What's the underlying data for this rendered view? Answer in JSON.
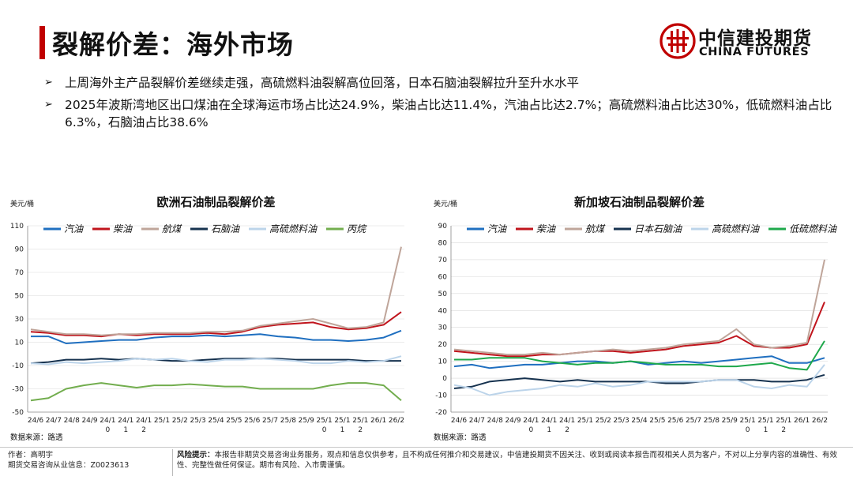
{
  "header": {
    "title": "裂解价差：海外市场",
    "logo_cn": "中信建投期货",
    "logo_en": "CHINA FUTURES"
  },
  "bullets": [
    "上周海外主产品裂解价差继续走强，高硫燃料油裂解高位回落，日本石脑油裂解拉升至升水水平",
    "2025年波斯湾地区出口煤油在全球海运市场占比达24.9%，柴油占比达11.4%，汽油占比达2.7%；高硫燃料油占比达30%，低硫燃料油占比6.3%，石脑油占比38.6%"
  ],
  "footer": {
    "author": "作者：高明宇",
    "license": "期货交易咨询从业信息：Z0023613",
    "risk_label": "风险提示：",
    "risk_text": "本报告非期货交易咨询业务服务，观点和信息仅供参考，且不构成任何推介和交易建议，中信建投期货不因关注、收到或阅读本报告而视相关人员为客户，不对以上分享内容的准确性、有效性、完整性做任何保证。期市有风险、入市需谨慎。"
  },
  "colors": {
    "accent": "#c00000",
    "gasoline": "#1f6fc0",
    "diesel": "#c0141c",
    "jet": "#bfa59a",
    "naphtha": "#16324f",
    "hsfo": "#bcd4ea",
    "propane": "#72ad4e",
    "lsfo": "#1ea84b"
  },
  "chart_data": [
    {
      "type": "line",
      "title": "欧洲石油制品裂解价差",
      "ylabel": "美元/桶",
      "source": "数据来源：路透",
      "ylim": [
        -50,
        110
      ],
      "yticks": [
        -50,
        -30,
        -10,
        10,
        30,
        50,
        70,
        90,
        110
      ],
      "xticks": [
        [
          "24/6"
        ],
        [
          "24/7"
        ],
        [
          "24/8"
        ],
        [
          "24/9"
        ],
        [
          "24/1",
          "0"
        ],
        [
          "24/1",
          "1"
        ],
        [
          "24/1",
          "2"
        ],
        [
          "25/1"
        ],
        [
          "25/2"
        ],
        [
          "25/3"
        ],
        [
          "25/4"
        ],
        [
          "25/5"
        ],
        [
          "25/6"
        ],
        [
          "25/7"
        ],
        [
          "25/8"
        ],
        [
          "25/9"
        ],
        [
          "25/1",
          "0"
        ],
        [
          "25/1",
          "1"
        ],
        [
          "25/1",
          "2"
        ],
        [
          "26/1"
        ],
        [
          "26/2"
        ]
      ],
      "legend_position": "top",
      "series": [
        {
          "name": "汽油",
          "color": "#1f6fc0",
          "values": [
            15,
            15,
            9,
            10,
            11,
            12,
            12,
            14,
            15,
            15,
            16,
            15,
            16,
            17,
            15,
            14,
            12,
            12,
            11,
            12,
            14,
            20
          ]
        },
        {
          "name": "柴油",
          "color": "#c0141c",
          "values": [
            19,
            18,
            16,
            16,
            15,
            17,
            16,
            17,
            17,
            17,
            18,
            17,
            19,
            23,
            25,
            26,
            27,
            23,
            21,
            22,
            25,
            36
          ]
        },
        {
          "name": "航煤",
          "color": "#bfa59a",
          "values": [
            21,
            19,
            17,
            17,
            16,
            17,
            17,
            18,
            18,
            18,
            19,
            19,
            20,
            24,
            26,
            28,
            30,
            26,
            22,
            23,
            27,
            92
          ]
        },
        {
          "name": "石脑油",
          "color": "#16324f",
          "values": [
            -8,
            -7,
            -5,
            -5,
            -4,
            -5,
            -4,
            -5,
            -6,
            -6,
            -5,
            -4,
            -4,
            -4,
            -4,
            -5,
            -5,
            -5,
            -5,
            -6,
            -6,
            -6
          ]
        },
        {
          "name": "高硫燃料油",
          "color": "#bcd4ea",
          "values": [
            -8,
            -9,
            -7,
            -8,
            -7,
            -6,
            -4,
            -5,
            -4,
            -6,
            -7,
            -5,
            -5,
            -4,
            -5,
            -6,
            -8,
            -8,
            -6,
            -7,
            -6,
            -2
          ]
        },
        {
          "name": "丙烷",
          "color": "#72ad4e",
          "values": [
            -40,
            -38,
            -30,
            -27,
            -25,
            -27,
            -29,
            -27,
            -27,
            -26,
            -27,
            -28,
            -28,
            -30,
            -30,
            -30,
            -30,
            -27,
            -25,
            -25,
            -27,
            -40
          ]
        }
      ]
    },
    {
      "type": "line",
      "title": "新加坡石油制品裂解价差",
      "ylabel": "美元/桶",
      "source": "数据来源：路透",
      "ylim": [
        -20,
        90
      ],
      "yticks": [
        -20,
        -10,
        0,
        10,
        20,
        30,
        40,
        50,
        60,
        70,
        80,
        90
      ],
      "xticks": [
        [
          "24/6"
        ],
        [
          "24/7"
        ],
        [
          "24/8"
        ],
        [
          "24/9"
        ],
        [
          "24/1",
          "0"
        ],
        [
          "24/1",
          "1"
        ],
        [
          "24/1",
          "2"
        ],
        [
          "25/1"
        ],
        [
          "25/2"
        ],
        [
          "25/3"
        ],
        [
          "25/4"
        ],
        [
          "25/5"
        ],
        [
          "25/6"
        ],
        [
          "25/7"
        ],
        [
          "25/8"
        ],
        [
          "25/9"
        ],
        [
          "25/1",
          "0"
        ],
        [
          "25/1",
          "1"
        ],
        [
          "25/1",
          "2"
        ],
        [
          "26/1"
        ],
        [
          "26/2"
        ]
      ],
      "legend_position": "top",
      "series": [
        {
          "name": "汽油",
          "color": "#1f6fc0",
          "values": [
            7,
            8,
            6,
            7,
            8,
            8,
            9,
            10,
            10,
            9,
            10,
            8,
            9,
            10,
            9,
            10,
            11,
            12,
            13,
            9,
            9,
            12
          ]
        },
        {
          "name": "柴油",
          "color": "#c0141c",
          "values": [
            16,
            15,
            14,
            13,
            13,
            14,
            14,
            15,
            16,
            16,
            15,
            16,
            17,
            19,
            20,
            21,
            25,
            19,
            18,
            18,
            20,
            45
          ]
        },
        {
          "name": "航煤",
          "color": "#bfa59a",
          "values": [
            17,
            16,
            15,
            14,
            14,
            15,
            14,
            15,
            16,
            17,
            16,
            17,
            18,
            20,
            21,
            22,
            29,
            20,
            18,
            19,
            21,
            70
          ]
        },
        {
          "name": "日本石脑油",
          "color": "#16324f",
          "values": [
            -6,
            -5,
            -2,
            -1,
            0,
            -1,
            -2,
            -1,
            -2,
            -2,
            -2,
            -2,
            -3,
            -3,
            -2,
            -1,
            -1,
            -1,
            -2,
            -2,
            -1,
            2
          ]
        },
        {
          "name": "高硫燃料油",
          "color": "#bcd4ea",
          "values": [
            -4,
            -6,
            -10,
            -8,
            -7,
            -6,
            -4,
            -5,
            -3,
            -5,
            -4,
            -2,
            -2,
            -2,
            -2,
            -1,
            -1,
            -5,
            -6,
            -4,
            -5,
            8
          ]
        },
        {
          "name": "低硫燃料油",
          "color": "#1ea84b",
          "values": [
            11,
            11,
            12,
            12,
            12,
            10,
            9,
            8,
            9,
            9,
            10,
            9,
            8,
            8,
            8,
            7,
            7,
            8,
            9,
            6,
            5,
            22
          ]
        }
      ]
    }
  ]
}
